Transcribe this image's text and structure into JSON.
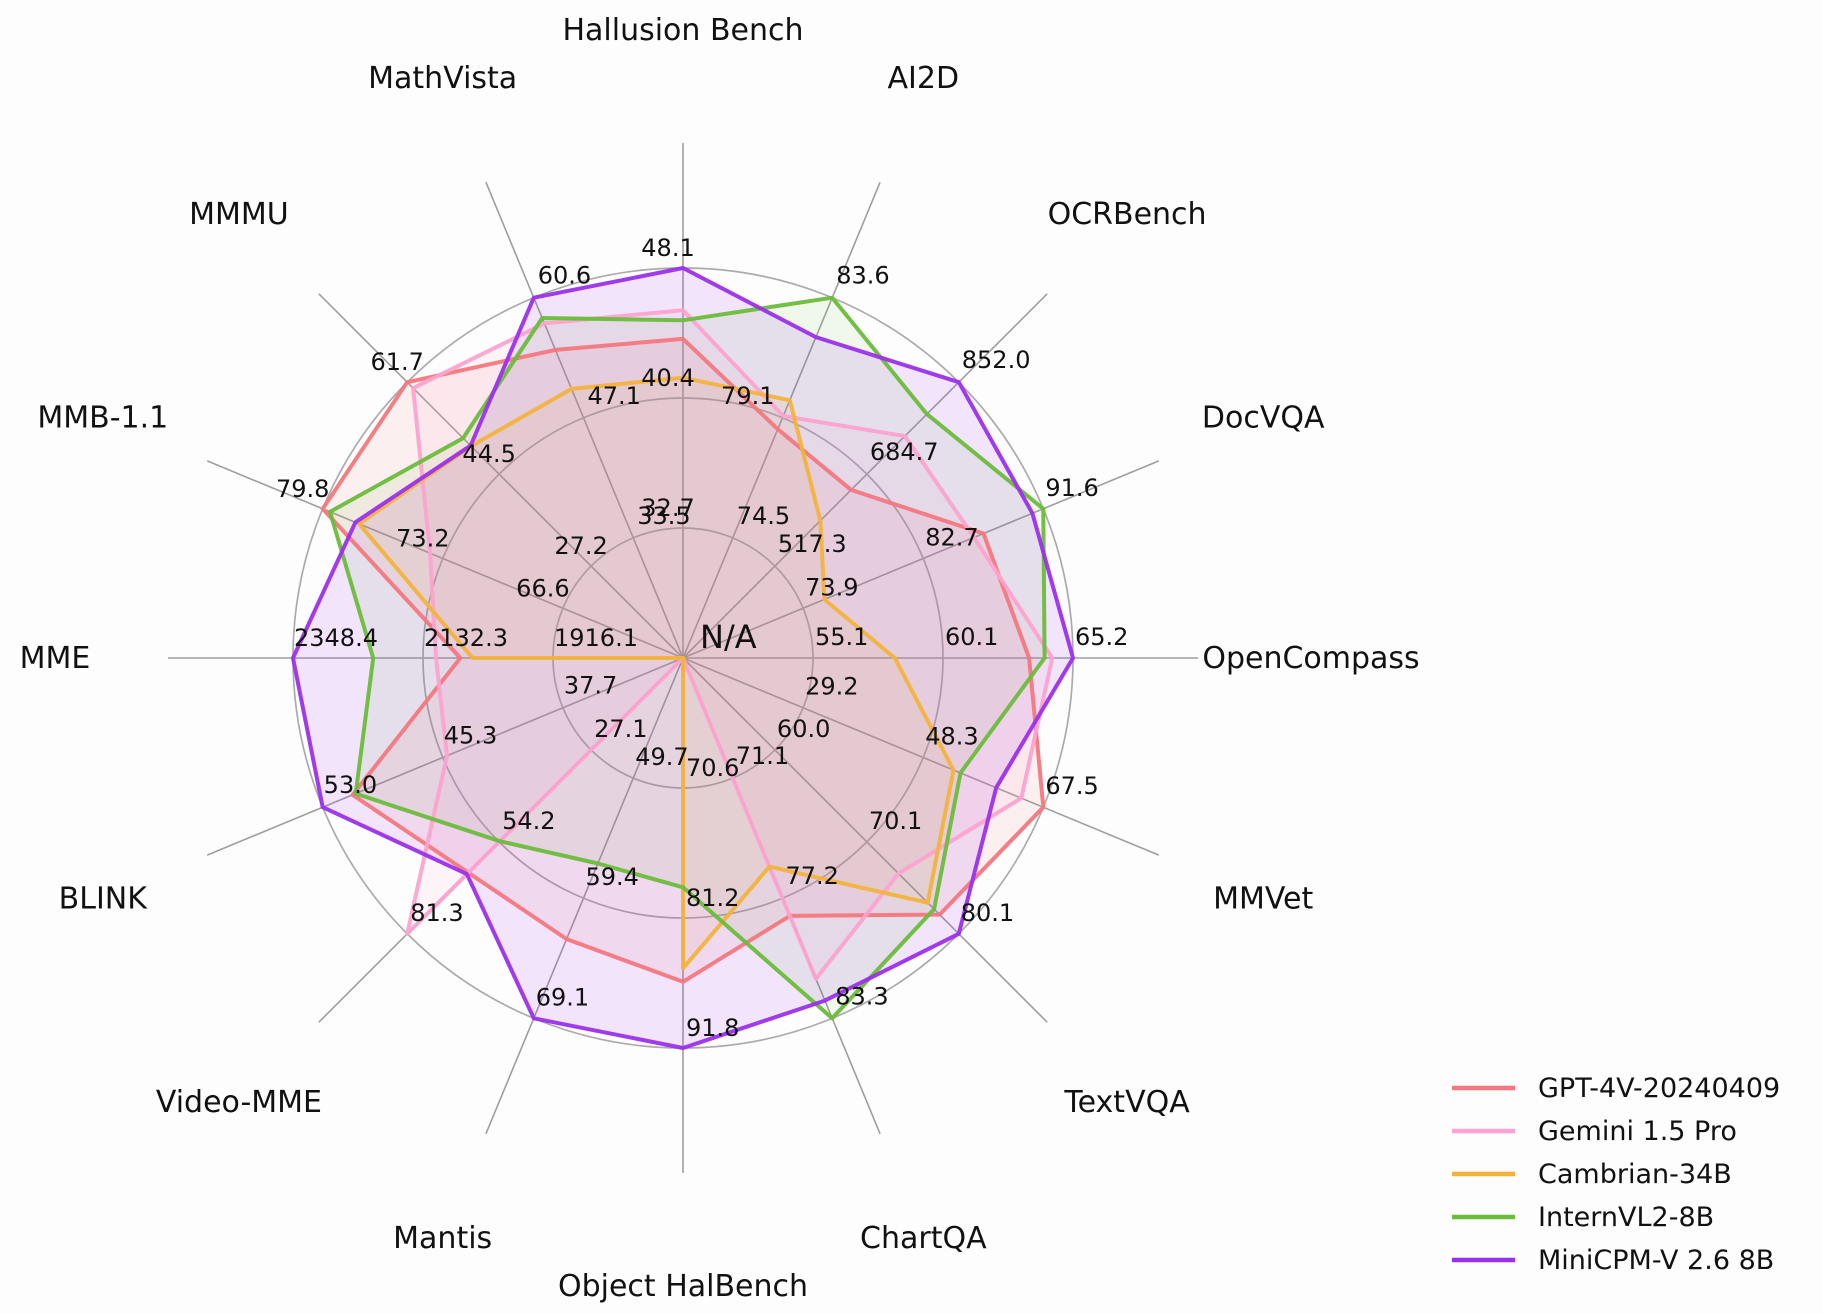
{
  "figure": {
    "background_color": "#fdfdfd",
    "center_label": "N/A",
    "grid_color": "#ababab",
    "text_color": "#111111"
  },
  "chart_data": {
    "type": "radar",
    "title": "",
    "grid": {
      "rings": 3,
      "ring_fractions": [
        0.3333,
        0.6667,
        1.0
      ],
      "note": "each axis has its own linear scale; ticks are printed at the three rings; N/A values are plotted at the center"
    },
    "axes": [
      {
        "label": "Hallusion Bench",
        "ticks": [
          "32.7",
          "40.4",
          "48.1"
        ]
      },
      {
        "label": "AI2D",
        "ticks": [
          "74.5",
          "79.1",
          "83.6"
        ]
      },
      {
        "label": "OCRBench",
        "ticks": [
          "517.3",
          "684.7",
          "852.0"
        ]
      },
      {
        "label": "DocVQA",
        "ticks": [
          "73.9",
          "82.7",
          "91.6"
        ]
      },
      {
        "label": "OpenCompass",
        "ticks": [
          "55.1",
          "60.1",
          "65.2"
        ]
      },
      {
        "label": "MMVet",
        "ticks": [
          "29.2",
          "48.3",
          "67.5"
        ]
      },
      {
        "label": "TextVQA",
        "ticks": [
          "60.0",
          "70.1",
          "80.1"
        ]
      },
      {
        "label": "ChartQA",
        "ticks": [
          "71.1",
          "77.2",
          "83.3"
        ]
      },
      {
        "label": "Object HalBench",
        "ticks": [
          "70.6",
          "81.2",
          "91.8"
        ]
      },
      {
        "label": "Mantis",
        "ticks": [
          "49.7",
          "59.4",
          "69.1"
        ]
      },
      {
        "label": "Video-MME",
        "ticks": [
          "27.1",
          "54.2",
          "81.3"
        ]
      },
      {
        "label": "BLINK",
        "ticks": [
          "37.7",
          "45.3",
          "53.0"
        ]
      },
      {
        "label": "MME",
        "ticks": [
          "1916.1",
          "2132.3",
          "2348.4"
        ]
      },
      {
        "label": "MMB-1.1",
        "ticks": [
          "66.6",
          "73.2",
          "79.8"
        ]
      },
      {
        "label": "MMMU",
        "ticks": [
          "27.2",
          "44.5",
          "61.7"
        ]
      },
      {
        "label": "MathVista",
        "ticks": [
          "33.5",
          "47.1",
          "60.6"
        ]
      }
    ],
    "series": [
      {
        "name": "GPT-4V-20240409",
        "color": "#f4777e",
        "fill_opacity": 0.1,
        "values": [
          43.9,
          78.6,
          656,
          87.2,
          63.5,
          67.5,
          78.0,
          78.1,
          86.4,
          62.7,
          63.3,
          51.1,
          2070.2,
          79.8,
          61.7,
          54.7
        ]
      },
      {
        "name": "Gemini 1.5 Pro",
        "color": "#fca3cf",
        "fill_opacity": 0.1,
        "values": [
          45.6,
          79.1,
          754,
          86.5,
          64.4,
          64.0,
          73.5,
          81.3,
          null,
          null,
          81.3,
          45.1,
          2110.6,
          73.9,
          60.6,
          57.7
        ]
      },
      {
        "name": "Cambrian-34B",
        "color": "#f2b33d",
        "fill_opacity": 0.09,
        "values": [
          41.6,
          79.7,
          600,
          75.5,
          58.3,
          53.2,
          76.7,
          75.6,
          85.3,
          null,
          null,
          null,
          2049.9,
          77.8,
          49.7,
          50.3
        ]
      },
      {
        "name": "InternVL2-8B",
        "color": "#6cbc3b",
        "fill_opacity": 0.09,
        "values": [
          45.0,
          83.6,
          794,
          91.6,
          64.1,
          54.3,
          77.4,
          83.3,
          78.7,
          56.6,
          54.0,
          50.9,
          2215.1,
          79.4,
          51.2,
          58.3
        ]
      },
      {
        "name": "MiniCPM-V 2.6 8B",
        "color": "#9b30eb",
        "fill_opacity": 0.12,
        "values": [
          48.1,
          82.1,
          852,
          90.8,
          65.2,
          60.0,
          80.1,
          82.4,
          91.8,
          69.1,
          63.7,
          53.0,
          2348.4,
          78.0,
          49.8,
          60.6
        ]
      }
    ],
    "legend": {
      "position": "bottom-right",
      "entries": [
        "GPT-4V-20240409",
        "Gemini 1.5 Pro",
        "Cambrian-34B",
        "InternVL2-8B",
        "MiniCPM-V 2.6 8B"
      ]
    }
  }
}
